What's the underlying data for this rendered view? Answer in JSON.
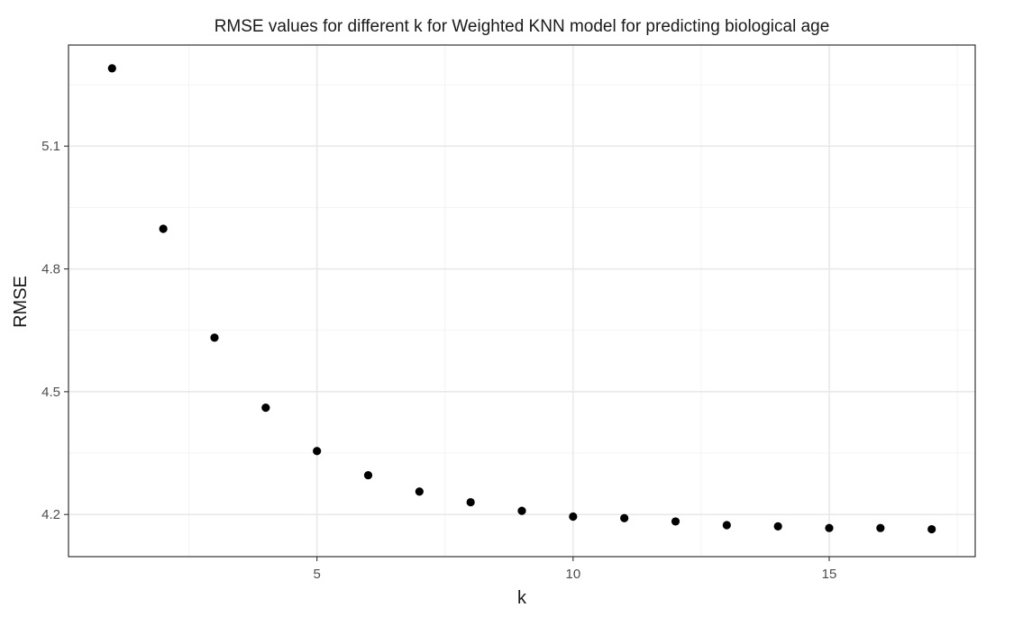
{
  "chart_data": {
    "type": "scatter",
    "title": "RMSE values for different k for Weighted KNN model for predicting biological age",
    "xlabel": "k",
    "ylabel": "RMSE",
    "xlim": [
      0.15,
      17.85
    ],
    "ylim": [
      4.097,
      5.347
    ],
    "x_ticks": [
      5,
      10,
      15
    ],
    "x_tick_labels": [
      "5",
      "10",
      "15"
    ],
    "y_ticks": [
      4.2,
      4.5,
      4.8,
      5.1
    ],
    "y_tick_labels": [
      "4.2",
      "4.5",
      "4.8",
      "5.1"
    ],
    "grid": true,
    "legend": "none",
    "point_color": "#000000",
    "series": [
      {
        "x": [
          1,
          2,
          3,
          4,
          5,
          6,
          7,
          8,
          9,
          10,
          11,
          12,
          13,
          14,
          15,
          16,
          17
        ],
        "y": [
          5.29,
          4.898,
          4.632,
          4.461,
          4.355,
          4.296,
          4.256,
          4.23,
          4.209,
          4.195,
          4.191,
          4.183,
          4.174,
          4.171,
          4.167,
          4.167,
          4.164
        ]
      }
    ]
  }
}
